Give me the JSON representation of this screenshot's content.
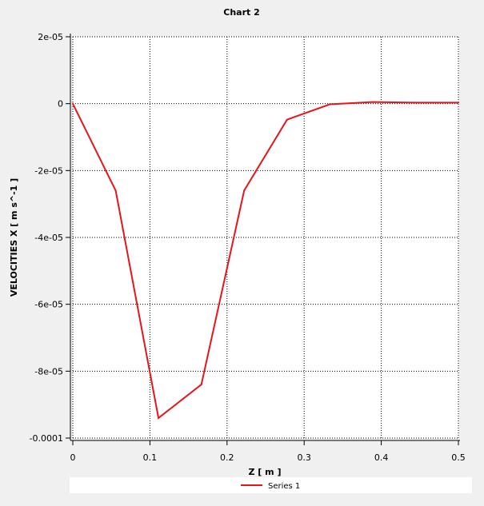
{
  "chart_data": {
    "type": "line",
    "title": "Chart 2",
    "xlabel": "Z [ m ]",
    "ylabel": "VELOCITIES X [ m s^-1 ]",
    "xlim": [
      0,
      0.5
    ],
    "ylim": [
      -0.0001,
      2e-05
    ],
    "x_ticks": [
      0,
      0.1,
      0.2,
      0.3,
      0.4,
      0.5
    ],
    "x_tick_labels": [
      "0",
      "0.1",
      "0.2",
      "0.3",
      "0.4",
      "0.5"
    ],
    "y_ticks": [
      2e-05,
      0,
      -2e-05,
      -4e-05,
      -6e-05,
      -8e-05,
      -0.0001
    ],
    "y_tick_labels": [
      "2e-05",
      "0",
      "-2e-05",
      "-4e-05",
      "-6e-05",
      "-8e-05",
      "-0.0001"
    ],
    "grid": true,
    "legend_position": "bottom",
    "series": [
      {
        "name": "Series 1",
        "color": "#e8141b",
        "x": [
          0,
          0.0556,
          0.1111,
          0.1667,
          0.2222,
          0.2778,
          0.3333,
          0.3889,
          0.4444,
          0.5
        ],
        "y": [
          0,
          -2.6e-05,
          -9.4e-05,
          -8.4e-05,
          -2.6e-05,
          -4.8e-06,
          -2e-07,
          5e-07,
          3e-07,
          3e-07
        ]
      }
    ]
  }
}
